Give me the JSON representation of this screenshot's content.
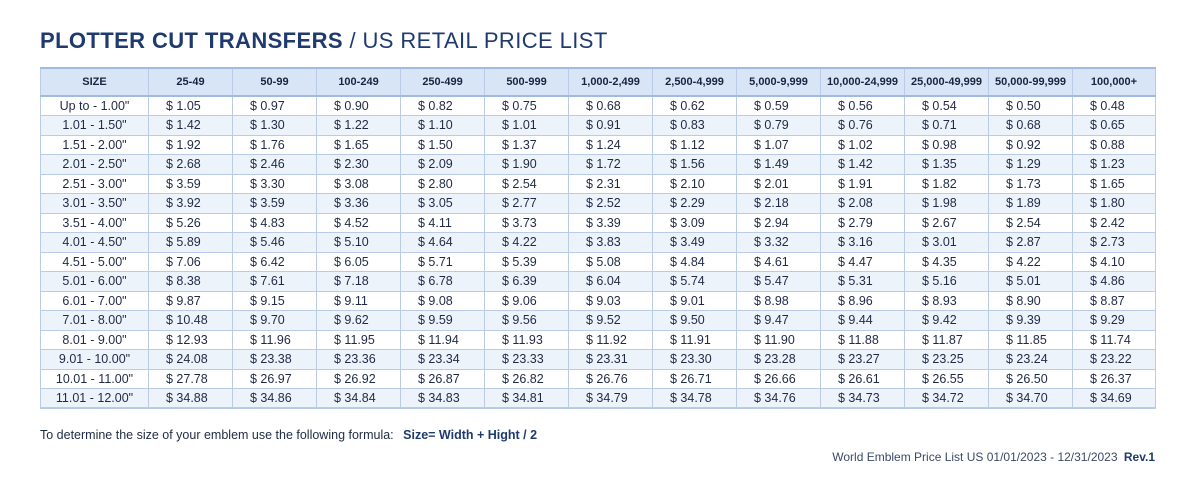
{
  "title": {
    "bold": "PLOTTER CUT TRANSFERS",
    "separator": "/",
    "light": "US RETAIL PRICE LIST"
  },
  "table": {
    "headers": [
      "SIZE",
      "25-49",
      "50-99",
      "100-249",
      "250-499",
      "500-999",
      "1,000-2,499",
      "2,500-4,999",
      "5,000-9,999",
      "10,000-24,999",
      "25,000-49,999",
      "50,000-99,999",
      "100,000+"
    ],
    "rows": [
      [
        "Up to - 1.00\"",
        "$ 1.05",
        "$ 0.97",
        "$ 0.90",
        "$ 0.82",
        "$ 0.75",
        "$ 0.68",
        "$ 0.62",
        "$ 0.59",
        "$ 0.56",
        "$ 0.54",
        "$ 0.50",
        "$ 0.48"
      ],
      [
        "1.01 - 1.50\"",
        "$ 1.42",
        "$ 1.30",
        "$ 1.22",
        "$ 1.10",
        "$ 1.01",
        "$ 0.91",
        "$ 0.83",
        "$ 0.79",
        "$ 0.76",
        "$ 0.71",
        "$ 0.68",
        "$ 0.65"
      ],
      [
        "1.51 - 2.00\"",
        "$ 1.92",
        "$ 1.76",
        "$ 1.65",
        "$ 1.50",
        "$ 1.37",
        "$ 1.24",
        "$ 1.12",
        "$ 1.07",
        "$ 1.02",
        "$ 0.98",
        "$ 0.92",
        "$ 0.88"
      ],
      [
        "2.01 - 2.50\"",
        "$ 2.68",
        "$ 2.46",
        "$ 2.30",
        "$ 2.09",
        "$ 1.90",
        "$ 1.72",
        "$ 1.56",
        "$ 1.49",
        "$ 1.42",
        "$ 1.35",
        "$ 1.29",
        "$ 1.23"
      ],
      [
        "2.51 - 3.00\"",
        "$ 3.59",
        "$ 3.30",
        "$ 3.08",
        "$ 2.80",
        "$ 2.54",
        "$ 2.31",
        "$ 2.10",
        "$ 2.01",
        "$ 1.91",
        "$ 1.82",
        "$ 1.73",
        "$ 1.65"
      ],
      [
        "3.01 - 3.50\"",
        "$ 3.92",
        "$ 3.59",
        "$ 3.36",
        "$ 3.05",
        "$ 2.77",
        "$ 2.52",
        "$ 2.29",
        "$ 2.18",
        "$ 2.08",
        "$ 1.98",
        "$ 1.89",
        "$ 1.80"
      ],
      [
        "3.51 - 4.00\"",
        "$ 5.26",
        "$ 4.83",
        "$ 4.52",
        "$ 4.11",
        "$ 3.73",
        "$ 3.39",
        "$ 3.09",
        "$ 2.94",
        "$ 2.79",
        "$ 2.67",
        "$ 2.54",
        "$ 2.42"
      ],
      [
        "4.01 - 4.50\"",
        "$ 5.89",
        "$ 5.46",
        "$ 5.10",
        "$ 4.64",
        "$ 4.22",
        "$ 3.83",
        "$ 3.49",
        "$ 3.32",
        "$ 3.16",
        "$ 3.01",
        "$ 2.87",
        "$ 2.73"
      ],
      [
        "4.51 - 5.00\"",
        "$ 7.06",
        "$ 6.42",
        "$ 6.05",
        "$ 5.71",
        "$ 5.39",
        "$ 5.08",
        "$ 4.84",
        "$ 4.61",
        "$ 4.47",
        "$ 4.35",
        "$ 4.22",
        "$ 4.10"
      ],
      [
        "5.01 - 6.00\"",
        "$ 8.38",
        "$ 7.61",
        "$ 7.18",
        "$ 6.78",
        "$ 6.39",
        "$ 6.04",
        "$ 5.74",
        "$ 5.47",
        "$ 5.31",
        "$ 5.16",
        "$ 5.01",
        "$ 4.86"
      ],
      [
        "6.01 - 7.00\"",
        "$ 9.87",
        "$ 9.15",
        "$ 9.11",
        "$ 9.08",
        "$ 9.06",
        "$ 9.03",
        "$ 9.01",
        "$ 8.98",
        "$ 8.96",
        "$ 8.93",
        "$ 8.90",
        "$ 8.87"
      ],
      [
        "7.01 - 8.00\"",
        "$ 10.48",
        "$ 9.70",
        "$ 9.62",
        "$ 9.59",
        "$ 9.56",
        "$ 9.52",
        "$ 9.50",
        "$ 9.47",
        "$ 9.44",
        "$ 9.42",
        "$ 9.39",
        "$ 9.29"
      ],
      [
        "8.01 - 9.00\"",
        "$ 12.93",
        "$ 11.96",
        "$ 11.95",
        "$ 11.94",
        "$ 11.93",
        "$ 11.92",
        "$ 11.91",
        "$ 11.90",
        "$ 11.88",
        "$ 11.87",
        "$ 11.85",
        "$ 11.74"
      ],
      [
        "9.01 - 10.00\"",
        "$ 24.08",
        "$ 23.38",
        "$ 23.36",
        "$ 23.34",
        "$ 23.33",
        "$ 23.31",
        "$ 23.30",
        "$ 23.28",
        "$ 23.27",
        "$ 23.25",
        "$ 23.24",
        "$ 23.22"
      ],
      [
        "10.01 - 11.00\"",
        "$ 27.78",
        "$ 26.97",
        "$ 26.92",
        "$ 26.87",
        "$ 26.82",
        "$ 26.76",
        "$ 26.71",
        "$ 26.66",
        "$ 26.61",
        "$ 26.55",
        "$ 26.50",
        "$ 26.37"
      ],
      [
        "11.01 - 12.00\"",
        "$ 34.88",
        "$ 34.86",
        "$ 34.84",
        "$ 34.83",
        "$ 34.81",
        "$ 34.79",
        "$ 34.78",
        "$ 34.76",
        "$ 34.73",
        "$ 34.72",
        "$ 34.70",
        "$ 34.69"
      ]
    ]
  },
  "formula": {
    "text": "To determine the size of your emblem use the following formula:",
    "bold": "Size= Width + Hight  / 2"
  },
  "footer": {
    "text": "World Emblem Price List US 01/01/2023 - 12/31/2023",
    "rev": "Rev.1"
  },
  "colors": {
    "title": "#1f3a6e",
    "header_bg": "#d7e5f6",
    "stripe": "#edf3fb",
    "border": "#b9cbe6"
  }
}
